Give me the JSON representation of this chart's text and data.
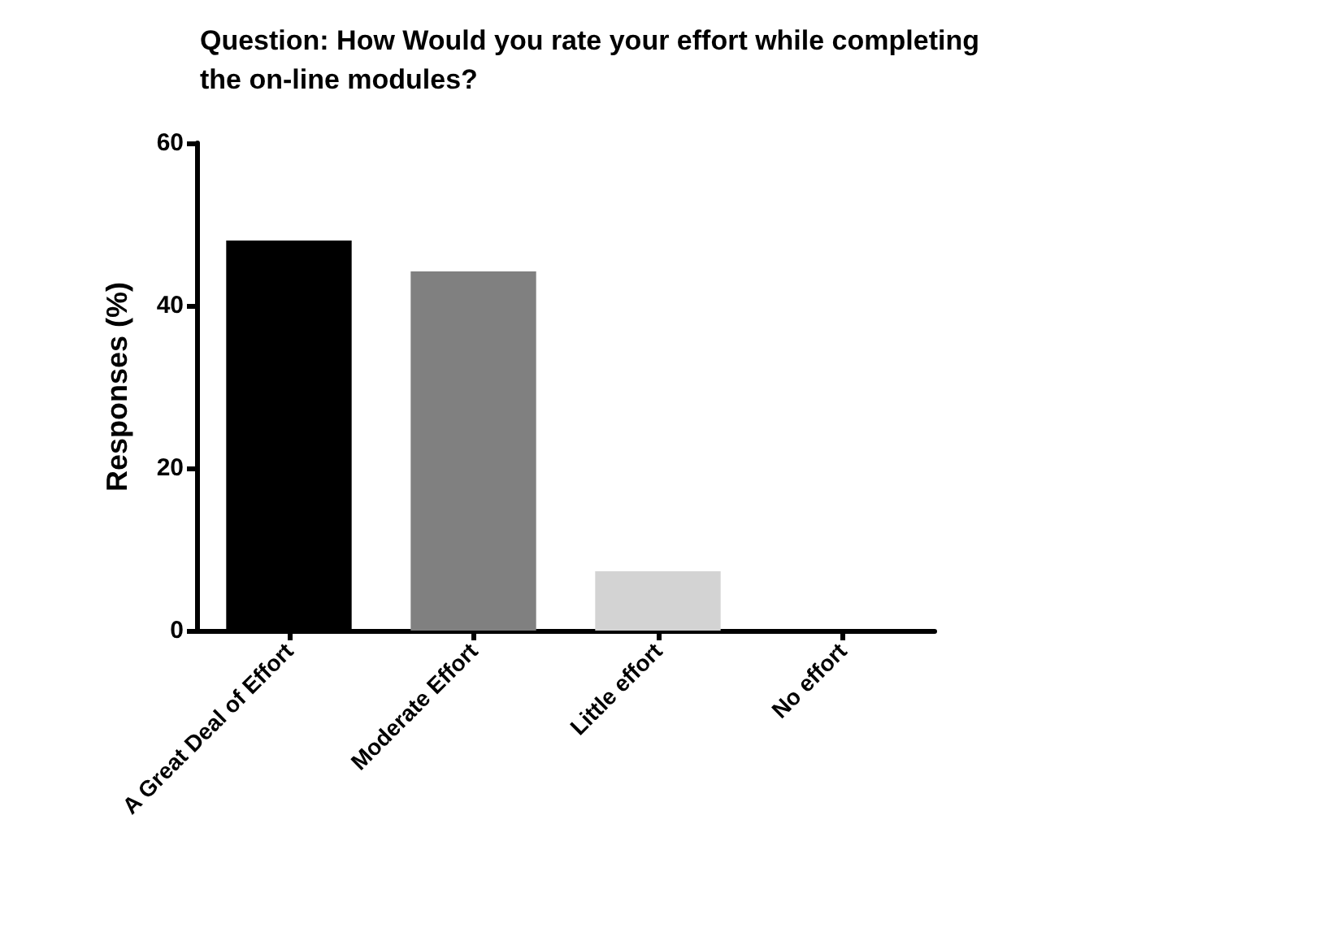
{
  "chart_data": {
    "type": "bar",
    "title": "Question: How Would you rate your effort while completing\nthe on-line modules?",
    "ylabel": "Responses (%)",
    "categories": [
      "A Great Deal of Effort",
      "Moderate Effort",
      "Little effort",
      "No effort"
    ],
    "values": [
      48,
      44.2,
      7.3,
      0
    ],
    "colors": [
      "#000000",
      "#808080",
      "#d3d3d3",
      "#ffffff"
    ],
    "ylim": [
      0,
      60
    ],
    "yticks": [
      0,
      20,
      40,
      60
    ]
  }
}
